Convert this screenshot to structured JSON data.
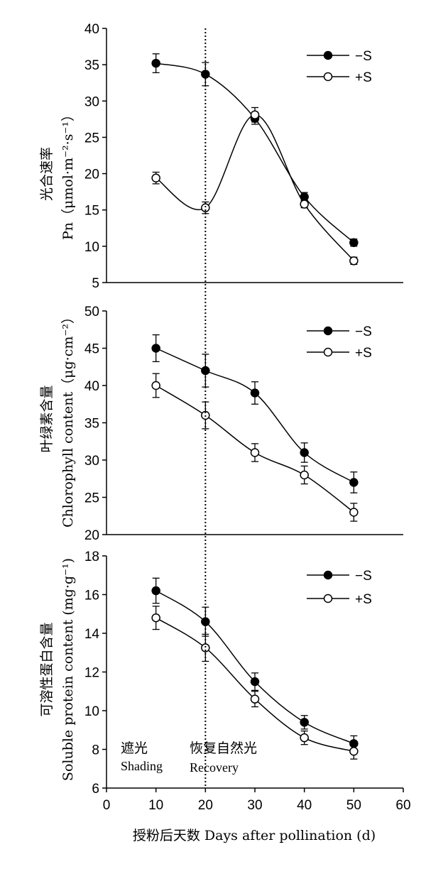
{
  "chart_data": [
    {
      "type": "line",
      "x": [
        10,
        20,
        30,
        40,
        50
      ],
      "xlim": [
        0,
        60
      ],
      "ylim": [
        5,
        40
      ],
      "yticks": [
        5,
        10,
        15,
        20,
        25,
        30,
        35,
        40
      ],
      "ylabel_cn": "光合速率",
      "ylabel_en": "Pn（μmol·m⁻²·s⁻¹）",
      "legend_position": "top-right",
      "series": [
        {
          "name": "−S",
          "marker": "filled",
          "values": [
            35.2,
            33.7,
            27.6,
            16.8,
            10.5
          ],
          "errors": [
            1.3,
            1.6,
            0.8,
            0.6,
            0.5
          ]
        },
        {
          "name": "+S",
          "marker": "open",
          "values": [
            19.4,
            15.3,
            28.1,
            15.8,
            8.0
          ],
          "errors": [
            0.8,
            0.8,
            1.0,
            0.5,
            0.5
          ]
        }
      ]
    },
    {
      "type": "line",
      "x": [
        10,
        20,
        30,
        40,
        50
      ],
      "xlim": [
        0,
        60
      ],
      "ylim": [
        20,
        50
      ],
      "yticks": [
        20,
        25,
        30,
        35,
        40,
        45,
        50
      ],
      "ylabel_cn": "叶绿素含量",
      "ylabel_en": "Chlorophyll content（μg·cm⁻²）",
      "legend_position": "top-right",
      "series": [
        {
          "name": "−S",
          "marker": "filled",
          "values": [
            45,
            42,
            39,
            31,
            27
          ],
          "errors": [
            1.8,
            2.2,
            1.5,
            1.3,
            1.4
          ]
        },
        {
          "name": "+S",
          "marker": "open",
          "values": [
            40,
            36,
            31,
            28,
            23
          ],
          "errors": [
            1.6,
            1.8,
            1.2,
            1.2,
            1.2
          ]
        }
      ]
    },
    {
      "type": "line",
      "x": [
        10,
        20,
        30,
        40,
        50
      ],
      "xlim": [
        0,
        60
      ],
      "ylim": [
        6,
        18
      ],
      "yticks": [
        6,
        8,
        10,
        12,
        14,
        16,
        18
      ],
      "xticks": [
        0,
        10,
        20,
        30,
        40,
        50,
        60
      ],
      "ylabel_cn": "可溶性蛋白含量",
      "ylabel_en": "Soluble protein content (mg·g⁻¹)",
      "xlabel": "授粉后天数 Days after pollination (d)",
      "legend_position": "top-right",
      "series": [
        {
          "name": "−S",
          "marker": "filled",
          "values": [
            16.2,
            14.6,
            11.5,
            9.4,
            8.3
          ],
          "errors": [
            0.65,
            0.75,
            0.45,
            0.35,
            0.4
          ]
        },
        {
          "name": "+S",
          "marker": "open",
          "values": [
            14.8,
            13.25,
            10.6,
            8.6,
            7.9
          ],
          "errors": [
            0.6,
            0.7,
            0.4,
            0.35,
            0.4
          ]
        }
      ]
    }
  ],
  "annotations": {
    "shading_cn": "遮光",
    "shading_en": "Shading",
    "recovery_cn": "恢复自然光",
    "recovery_en": "Recovery",
    "divider_x": 20
  }
}
